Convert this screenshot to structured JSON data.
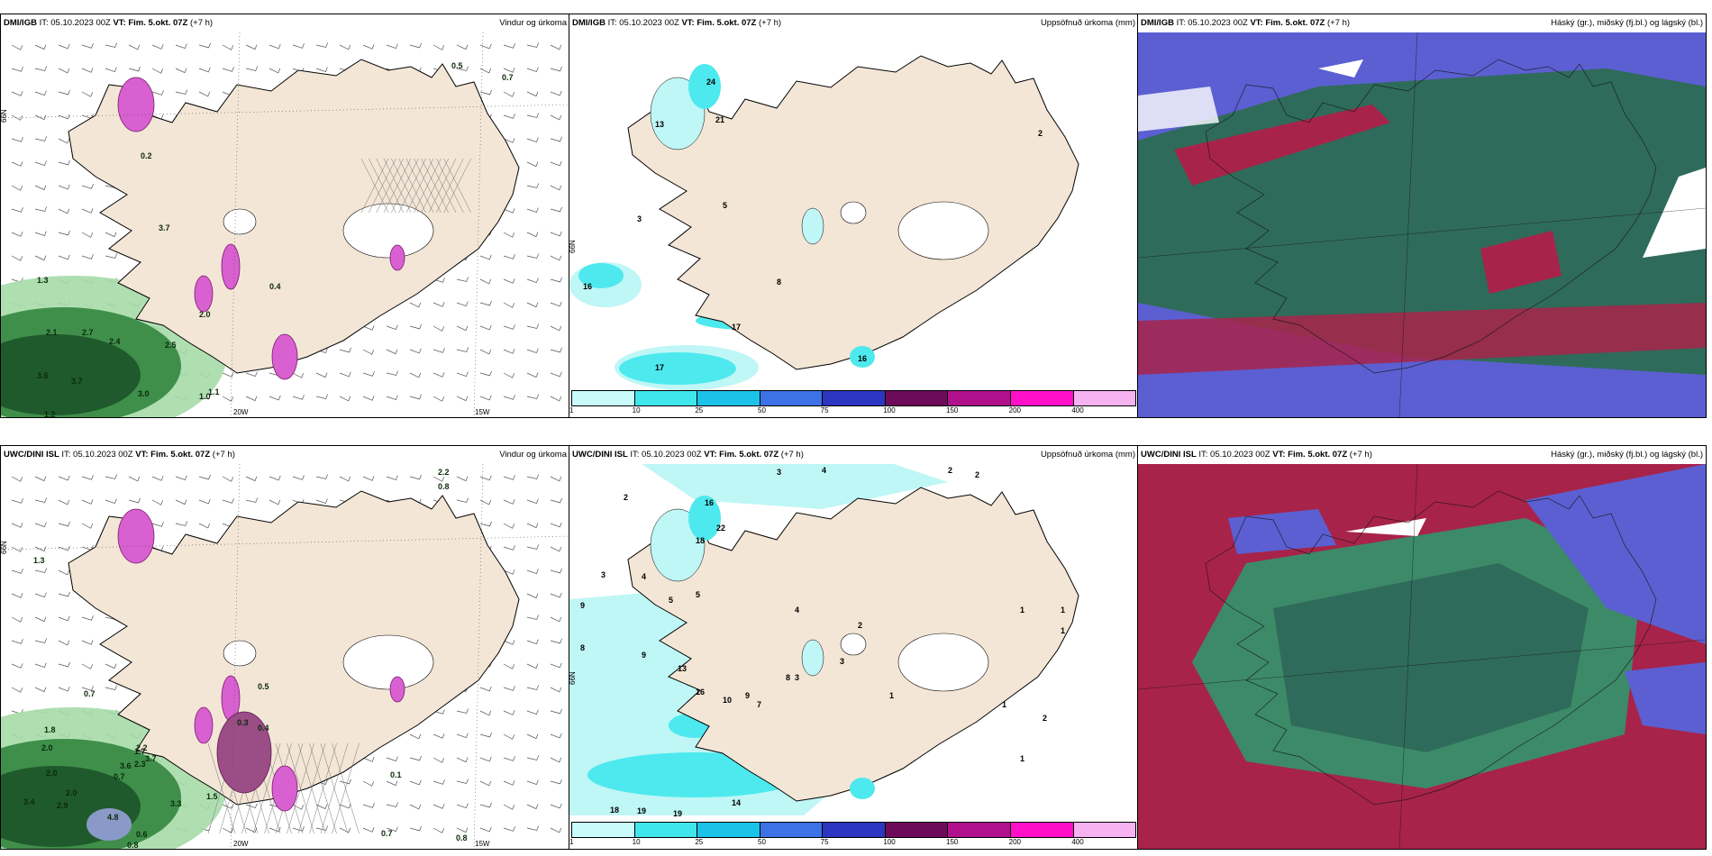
{
  "panels": [
    {
      "model": "DMI/IGB",
      "it": "IT: 05.10.2023 00Z",
      "vt_label": "VT:",
      "vt": "Fim. 5.okt. 07Z",
      "lead": "(+7 h)",
      "title": "Vindur og úrkoma",
      "values": [
        "0.5",
        "0.7",
        "0.2",
        "3.7",
        "1.3",
        "2.1",
        "2.7",
        "2.4",
        "3.6",
        "3.7",
        "3.0",
        "1.2",
        "1.0",
        "0.4",
        "2.0",
        "2.5",
        "1.1"
      ],
      "lon_labels": [
        "20W",
        "15W"
      ],
      "lat_label": "66N"
    },
    {
      "model": "DMI/IGB",
      "it": "IT: 05.10.2023 00Z",
      "vt_label": "VT:",
      "vt": "Fim. 5.okt. 07Z",
      "lead": "(+7 h)",
      "title": "Uppsöfnuð úrkoma (mm)",
      "values": [
        "24",
        "21",
        "13",
        "2",
        "5",
        "8",
        "16",
        "17",
        "17",
        "16",
        "3"
      ],
      "lat_label": "66N"
    },
    {
      "model": "DMI/IGB",
      "it": "IT: 05.10.2023 00Z",
      "vt_label": "VT:",
      "vt": "Fim. 5.okt. 07Z",
      "lead": "(+7 h)",
      "title": "Háský (gr.), miðský (fj.bl.) og lágský (bl.)"
    },
    {
      "model": "UWC/DINI ISL",
      "it": "IT: 05.10.2023 00Z",
      "vt_label": "VT:",
      "vt": "Fim. 5.okt. 07Z",
      "lead": "(+7 h)",
      "title": "Vindur og úrkoma",
      "values": [
        "2.2",
        "0.8",
        "1.3",
        "0.7",
        "1.8",
        "2.0",
        "1.7",
        "2.3",
        "3.6",
        "3.7",
        "2.0",
        "0.7",
        "3.4",
        "2.9",
        "2.0",
        "4.8",
        "3.3",
        "1.5",
        "0.6",
        "0.8",
        "2.2",
        "0.8",
        "0.7",
        "0.3",
        "0.4",
        "0.1",
        "0.5"
      ],
      "lon_labels": [
        "20W",
        "15W"
      ],
      "lat_label": "66N"
    },
    {
      "model": "UWC/DINI ISL",
      "it": "IT: 05.10.2023 00Z",
      "vt_label": "VT:",
      "vt": "Fim. 5.okt. 07Z",
      "lead": "(+7 h)",
      "title": "Uppsöfnuð úrkoma (mm)",
      "values": [
        "3",
        "4",
        "2",
        "2",
        "2",
        "16",
        "18",
        "22",
        "3",
        "4",
        "5",
        "9",
        "5",
        "8",
        "9",
        "13",
        "16",
        "10",
        "9",
        "7",
        "8",
        "18",
        "19",
        "19",
        "14",
        "4",
        "3",
        "2",
        "3",
        "1",
        "1",
        "2",
        "1",
        "1",
        "1",
        "1"
      ],
      "lat_label": "66N"
    },
    {
      "model": "UWC/DINI ISL",
      "it": "IT: 05.10.2023 00Z",
      "vt_label": "VT:",
      "vt": "Fim. 5.okt. 07Z",
      "lead": "(+7 h)",
      "title": "Háský (gr.), miðský (fj.bl.) og lágský (bl.)"
    }
  ],
  "legend": {
    "ticks": [
      "1",
      "10",
      "25",
      "50",
      "75",
      "100",
      "150",
      "200",
      "400"
    ],
    "colors": [
      "#c9fbfb",
      "#3fe6ec",
      "#1cc2e8",
      "#3c72e6",
      "#2c36c0",
      "#6d0a5a",
      "#b0108c",
      "#ff10c8",
      "#f7b2f2"
    ]
  },
  "colors": {
    "land": "#f3e6d6",
    "sea": "#ffffff",
    "precip_light": "#bff6f6",
    "precip_mid": "#4de9ee",
    "green_dark": "#1f5a2c",
    "green_light": "#a6dba8",
    "magenta": "#d860d0",
    "cloud_high": "#2f6b5a",
    "cloud_low": "#5b5fd1",
    "cloud_mid": "#a8234a"
  }
}
